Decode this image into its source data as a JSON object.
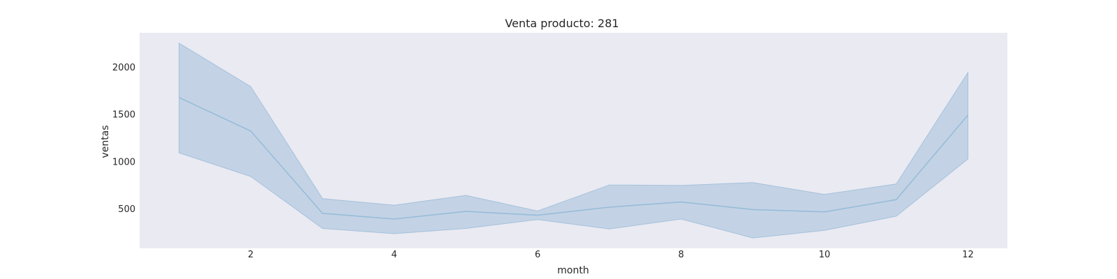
{
  "chart_data": {
    "type": "line",
    "title": "Venta producto: 281",
    "xlabel": "month",
    "ylabel": "ventas",
    "xlim": [
      0.45,
      12.55
    ],
    "ylim": [
      80,
      2360
    ],
    "xticks": [
      2,
      4,
      6,
      8,
      10,
      12
    ],
    "yticks": [
      500,
      1000,
      1500,
      2000
    ],
    "grid": false,
    "colors": {
      "background": "#eaeaf2",
      "line": "#97bcd9",
      "band": "#c3d3e5",
      "band_edge": "#a4c1dc"
    },
    "series": [
      {
        "x": [
          1,
          2,
          3,
          4,
          5,
          6,
          7,
          8,
          9,
          10,
          11,
          12
        ],
        "mean": [
          1675,
          1320,
          450,
          390,
          470,
          430,
          515,
          570,
          490,
          465,
          595,
          1490
        ],
        "upper": [
          2250,
          1790,
          605,
          535,
          640,
          475,
          750,
          745,
          775,
          650,
          760,
          1940
        ],
        "lower": [
          1090,
          840,
          290,
          235,
          290,
          385,
          285,
          390,
          190,
          270,
          420,
          1025
        ]
      }
    ]
  }
}
